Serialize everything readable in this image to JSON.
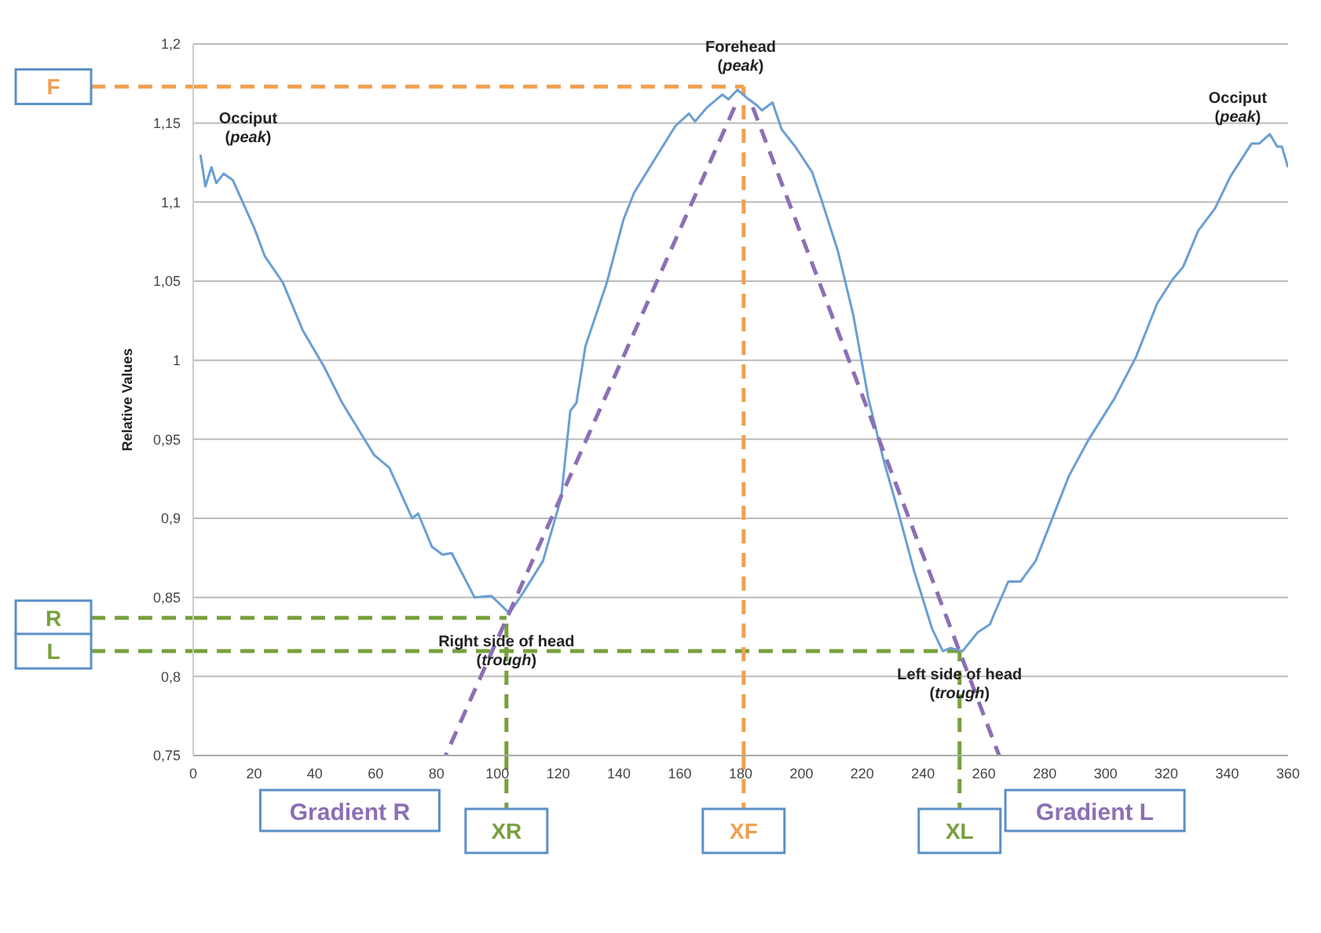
{
  "chart_data": {
    "type": "line",
    "ylabel": "Relative Values",
    "xlim": [
      0,
      360
    ],
    "ylim": [
      0.75,
      1.2
    ],
    "xticks": [
      0,
      20,
      40,
      60,
      80,
      100,
      120,
      140,
      160,
      180,
      200,
      220,
      240,
      260,
      280,
      300,
      320,
      340,
      360
    ],
    "yticks": [
      {
        "value": 0.75,
        "label": "0,75"
      },
      {
        "value": 0.8,
        "label": "0,8"
      },
      {
        "value": 0.85,
        "label": "0,85"
      },
      {
        "value": 0.9,
        "label": "0,9"
      },
      {
        "value": 0.95,
        "label": "0,95"
      },
      {
        "value": 1,
        "label": "1"
      },
      {
        "value": 1.05,
        "label": "1,05"
      },
      {
        "value": 1.1,
        "label": "1,1"
      },
      {
        "value": 1.15,
        "label": "1,15"
      },
      {
        "value": 1.2,
        "label": "1,2"
      }
    ],
    "grid": "y",
    "series": [
      {
        "color": "#6a9fd3",
        "line_style": "solid",
        "x": [
          2.4,
          4,
          6,
          7.6,
          10,
          13,
          16.5,
          20,
          23.5,
          29.5,
          36,
          43,
          49,
          59.5,
          64.5,
          72,
          74,
          78.5,
          82,
          85,
          92.5,
          98,
          104,
          108.5,
          115,
          121,
          124,
          126,
          129,
          136,
          141.5,
          145,
          153,
          158.5,
          163,
          165,
          169,
          174,
          176,
          179,
          182,
          185.5,
          187,
          190.5,
          193.5,
          198,
          203.5,
          206.5,
          212,
          217,
          222,
          227,
          232,
          237,
          243,
          246.5,
          249,
          253,
          258,
          262,
          263.5,
          268,
          272,
          277,
          288,
          294.5,
          303,
          310,
          317,
          322,
          325.5,
          330.5,
          336,
          341,
          348,
          350.5,
          354,
          356.5,
          358,
          360
        ],
        "values": [
          1.13,
          1.11,
          1.122,
          1.112,
          1.118,
          1.114,
          1.099,
          1.084,
          1.066,
          1.049,
          1.019,
          0.996,
          0.973,
          0.94,
          0.932,
          0.9,
          0.903,
          0.882,
          0.877,
          0.878,
          0.85,
          0.851,
          0.84,
          0.853,
          0.873,
          0.913,
          0.968,
          0.973,
          1.009,
          1.049,
          1.089,
          1.106,
          1.131,
          1.148,
          1.156,
          1.151,
          1.16,
          1.168,
          1.165,
          1.171,
          1.166,
          1.161,
          1.158,
          1.163,
          1.146,
          1.135,
          1.119,
          1.102,
          1.069,
          1.029,
          0.976,
          0.937,
          0.903,
          0.867,
          0.83,
          0.816,
          0.818,
          0.816,
          0.828,
          0.833,
          0.84,
          0.86,
          0.86,
          0.873,
          0.927,
          0.95,
          0.976,
          1.002,
          1.036,
          1.051,
          1.059,
          1.082,
          1.096,
          1.116,
          1.137,
          1.137,
          1.143,
          1.135,
          1.135,
          1.122
        ]
      },
      {
        "name": "Gradient R",
        "color": "#8c6fb4",
        "line_style": "dashed",
        "x": [
          178,
          83
        ],
        "values": [
          1.16,
          0.75
        ]
      },
      {
        "name": "Gradient L",
        "color": "#8c6fb4",
        "line_style": "dashed",
        "x": [
          184,
          265
        ],
        "values": [
          1.16,
          0.75
        ]
      }
    ],
    "ref_lines": [
      {
        "axis": "y",
        "value": 1.173,
        "label": "F",
        "color": "#f0a050",
        "line_style": "dashed"
      },
      {
        "axis": "y",
        "value": 0.837,
        "label": "R",
        "color": "#77a03c",
        "line_style": "dashed"
      },
      {
        "axis": "y",
        "value": 0.816,
        "label": "L",
        "color": "#77a03c",
        "line_style": "dashed"
      },
      {
        "axis": "x",
        "value": 181,
        "label": "XF",
        "color": "#f0a050",
        "line_style": "dashed"
      },
      {
        "axis": "x",
        "value": 103,
        "label": "XR",
        "color": "#77a03c",
        "line_style": "dashed"
      },
      {
        "axis": "x",
        "value": 252,
        "label": "XL",
        "color": "#77a03c",
        "line_style": "dashed"
      }
    ],
    "annotations": [
      {
        "text": "Occiput\n(peak)",
        "x": 2.4,
        "y": 1.13
      },
      {
        "text": "Forehead\n(peak)",
        "x": 180,
        "y": 1.175
      },
      {
        "text": "Occiput\n(peak)",
        "x": 354,
        "y": 1.143
      },
      {
        "text": "Right side of head\n(trough)",
        "x": 103,
        "y": 0.837
      },
      {
        "text": "Left side of head\n(trough)",
        "x": 252,
        "y": 0.816
      }
    ]
  }
}
